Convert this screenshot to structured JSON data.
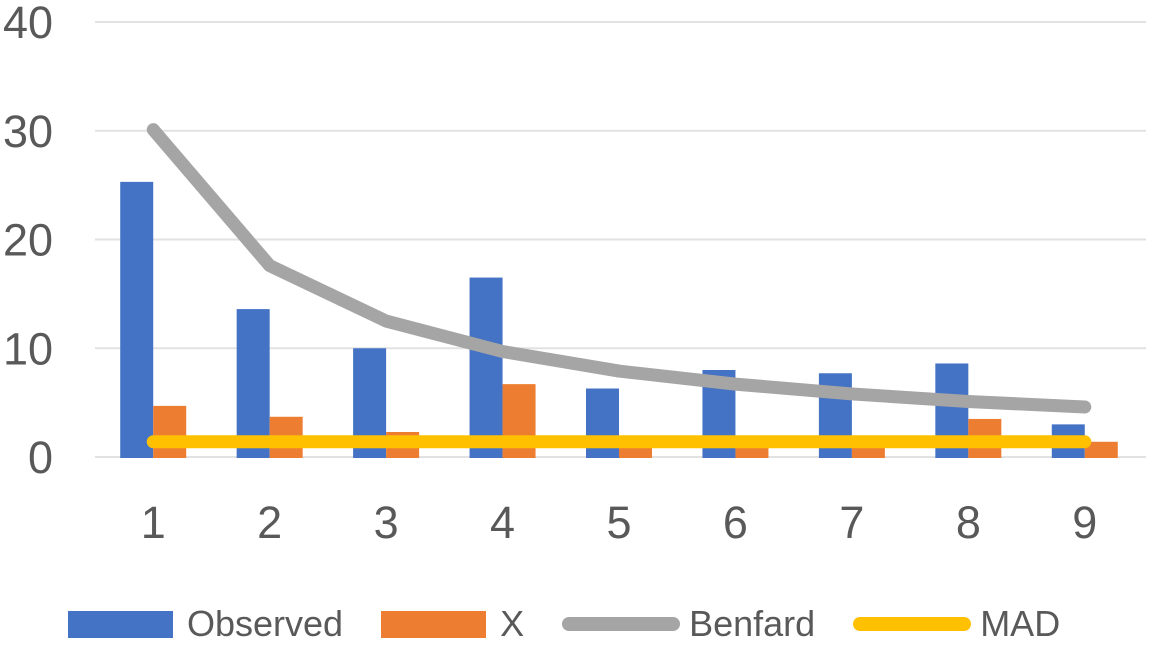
{
  "chart_data": {
    "type": "combo-bar-line",
    "title": "",
    "xlabel": "",
    "ylabel": "",
    "categories": [
      "1",
      "2",
      "3",
      "4",
      "5",
      "6",
      "7",
      "8",
      "9"
    ],
    "series": [
      {
        "name": "Observed",
        "type": "bar",
        "color": "#4472C4",
        "values": [
          25.3,
          13.6,
          10.0,
          16.5,
          6.3,
          8.0,
          7.7,
          8.6,
          3.0
        ]
      },
      {
        "name": "X",
        "type": "bar",
        "color": "#ED7D31",
        "values": [
          4.7,
          3.7,
          2.3,
          6.7,
          1.4,
          1.3,
          1.5,
          3.5,
          1.4
        ]
      },
      {
        "name": "Benfard",
        "type": "line",
        "color": "#A5A5A5",
        "values": [
          30.1,
          17.6,
          12.5,
          9.7,
          7.9,
          6.7,
          5.8,
          5.1,
          4.6
        ]
      },
      {
        "name": "MAD",
        "type": "line",
        "color": "#FFC000",
        "values": [
          1.4,
          1.4,
          1.4,
          1.4,
          1.4,
          1.4,
          1.4,
          1.4,
          1.4
        ]
      }
    ],
    "ylim": [
      0,
      40
    ],
    "yticks": [
      "0",
      "10",
      "20",
      "30",
      "40"
    ],
    "grid": true,
    "gridline_color": "#E2E2E2",
    "axis_text_color": "#595959",
    "legend_position": "bottom"
  }
}
